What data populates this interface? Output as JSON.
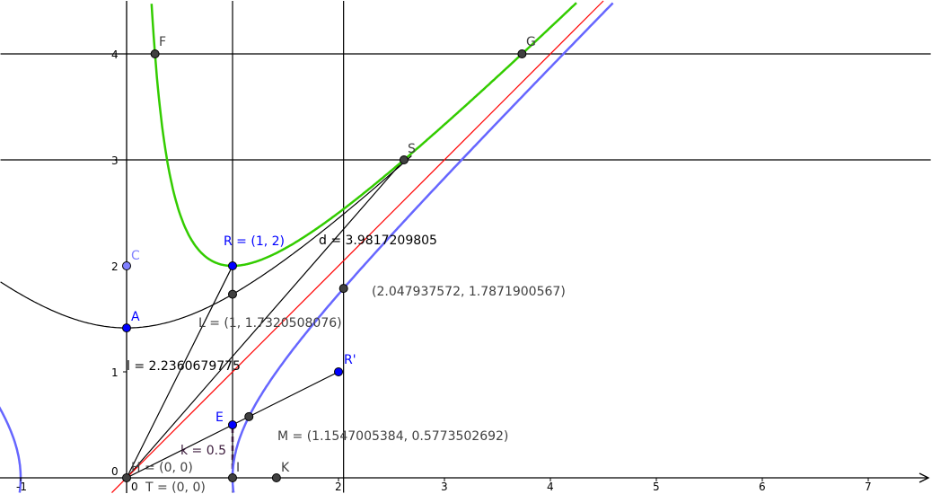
{
  "axes": {
    "x_ticks": [
      "-1",
      "0",
      "2",
      "3",
      "4",
      "5",
      "6",
      "7"
    ],
    "y_ticks": [
      "0",
      "1",
      "2",
      "3",
      "4"
    ],
    "origin_label": "0"
  },
  "colors": {
    "green_curve": "#33cc00",
    "blue_curve": "#6666ff",
    "asymptote": "#ff0000",
    "black": "#000000",
    "point_dark": "#404040",
    "point_blue": "#0000ff",
    "point_light": "#8080ff",
    "dashed_segment": "#3c1c3c"
  },
  "labels": {
    "F": "F",
    "G": "G",
    "S": "S",
    "R": "R = (1, 2)",
    "C": "C",
    "A": "A",
    "L": "L = (1, 1.7320508076)",
    "d": "d = 3.9817209805",
    "P": "(2.047937572, 1.7871900567)",
    "l": "l = 2.2360679775",
    "Rp": "R'",
    "E": "E",
    "M": "M = (1.1547005384, 0.5773502692)",
    "k": "k = 0.5",
    "H": "H = (0, 0)",
    "T": "T = (0, 0)",
    "I": "I",
    "K": "K"
  }
}
